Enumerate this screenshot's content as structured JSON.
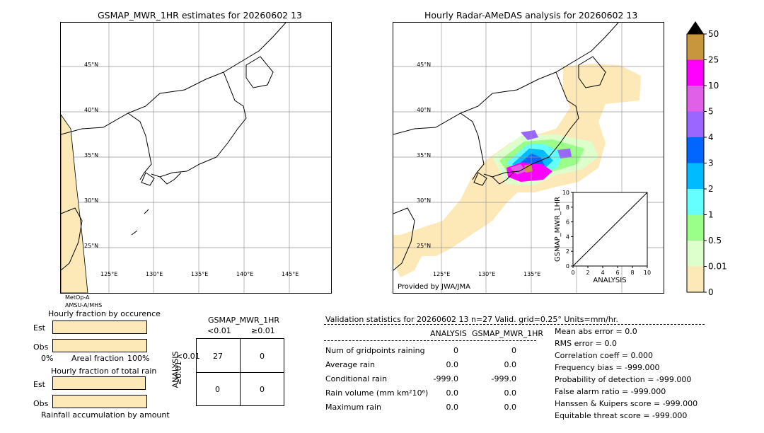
{
  "left_map": {
    "title": "GSMAP_MWR_1HR estimates for 20260602 13",
    "lat_labels": [
      "45°N",
      "40°N",
      "35°N",
      "30°N",
      "25°N"
    ],
    "lon_labels": [
      "125°E",
      "130°E",
      "135°E",
      "140°E",
      "145°E"
    ],
    "sensor_line1": "MetOp-A",
    "sensor_line2": "AMSU-A/MHS"
  },
  "right_map": {
    "title": "Hourly Radar-AMeDAS analysis for 20260602 13",
    "lat_labels": [
      "45°N",
      "40°N",
      "35°N",
      "30°N",
      "25°N"
    ],
    "lon_labels": [
      "125°E",
      "130°E",
      "135°E"
    ],
    "provider": "Provided by JWA/JMA"
  },
  "colorbar": {
    "labels": [
      "50",
      "25",
      "10",
      "5",
      "4",
      "3",
      "2",
      "1",
      "0.5",
      "0.01",
      "0"
    ],
    "colors": [
      "#c8963c",
      "#ff00ff",
      "#e060e8",
      "#9966ff",
      "#0066ff",
      "#00bbff",
      "#66ffff",
      "#99ff88",
      "#ddffcc",
      "#fde9b8"
    ]
  },
  "chart_data": [
    {
      "type": "scatter",
      "title": "",
      "xlabel": "ANALYSIS",
      "ylabel": "GSMAP_MWR_1HR",
      "xlim": [
        0,
        10
      ],
      "ylim": [
        0,
        10
      ],
      "x_ticks": [
        "0",
        "2",
        "4",
        "6",
        "8",
        "10"
      ],
      "y_ticks": [
        "0",
        "2",
        "4",
        "6",
        "8",
        "10"
      ],
      "points": [],
      "reference_line": {
        "x": [
          0,
          10
        ],
        "y": [
          0,
          10
        ]
      }
    },
    {
      "type": "bar",
      "title": "Hourly fraction by occurence",
      "categories": [
        "Est",
        "Obs"
      ],
      "values": [
        100,
        100
      ],
      "xlabel": "Areal fraction",
      "x_ticks": [
        "0%",
        "100%"
      ]
    },
    {
      "type": "bar",
      "title": "Hourly fraction of total rain",
      "categories": [
        "Est",
        "Obs"
      ],
      "values": [
        100,
        100
      ],
      "xlabel": "Rainfall accumulation by amount"
    },
    {
      "type": "table",
      "title": "GSMAP_MWR_1HR",
      "col_headers": [
        "<0.01",
        "≥0.01"
      ],
      "row_axis": "ANALYSIS",
      "row_headers": [
        "<0.01",
        "≥0.01"
      ],
      "cells": [
        [
          "27",
          "0"
        ],
        [
          "0",
          "0"
        ]
      ]
    }
  ],
  "validation": {
    "header": "Validation statistics for 20260602 13  n=27 Valid. grid=0.25° Units=mm/hr.",
    "col_analysis": "ANALYSIS",
    "col_gsmap": "GSMAP_MWR_1HR",
    "rows": [
      {
        "label": "Num of gridpoints raining",
        "analysis": "0",
        "gsmap": "0"
      },
      {
        "label": "Average rain",
        "analysis": "0.0",
        "gsmap": "0.0"
      },
      {
        "label": "Conditional rain",
        "analysis": "-999.0",
        "gsmap": "-999.0"
      },
      {
        "label": "Rain volume (mm km²10⁶)",
        "analysis": "0.0",
        "gsmap": "0.0"
      },
      {
        "label": "Maximum rain",
        "analysis": "0.0",
        "gsmap": "0.0"
      }
    ],
    "scores": [
      "Mean abs error =    0.0",
      "RMS error =    0.0",
      "Correlation coeff =  0.000",
      "Frequency bias = -999.000",
      "Probability of detection = -999.000",
      "False alarm ratio = -999.000",
      "Hanssen & Kuipers score = -999.000",
      "Equitable threat score = -999.000"
    ]
  }
}
